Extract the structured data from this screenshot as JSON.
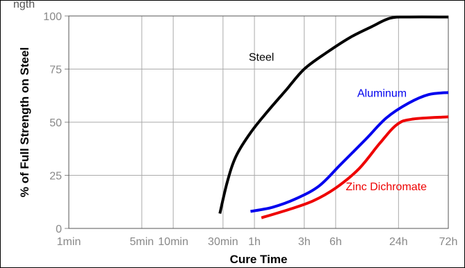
{
  "chart_data": {
    "type": "line",
    "caption_fragment": "ngth",
    "xlabel": "Cure Time",
    "ylabel": "% of Full Strength on Steel",
    "xscale": "log",
    "x_ticks": [
      {
        "label": "1min",
        "minutes": 1
      },
      {
        "label": "5min",
        "minutes": 5
      },
      {
        "label": "10min",
        "minutes": 10
      },
      {
        "label": "30min",
        "minutes": 30
      },
      {
        "label": "1h",
        "minutes": 60
      },
      {
        "label": "3h",
        "minutes": 180
      },
      {
        "label": "6h",
        "minutes": 360
      },
      {
        "label": "24h",
        "minutes": 1440
      },
      {
        "label": "72h",
        "minutes": 4320
      }
    ],
    "y_ticks": [
      0,
      25,
      50,
      75,
      100
    ],
    "ylim": [
      0,
      100
    ],
    "xlim_minutes": [
      1,
      4320
    ],
    "grid": true,
    "series": [
      {
        "name": "Steel",
        "color": "#000000",
        "points": [
          {
            "minutes": 28,
            "value": 7
          },
          {
            "minutes": 33,
            "value": 22
          },
          {
            "minutes": 40,
            "value": 34
          },
          {
            "minutes": 55,
            "value": 45
          },
          {
            "minutes": 80,
            "value": 55
          },
          {
            "minutes": 120,
            "value": 65
          },
          {
            "minutes": 180,
            "value": 75
          },
          {
            "minutes": 300,
            "value": 83
          },
          {
            "minutes": 500,
            "value": 90
          },
          {
            "minutes": 800,
            "value": 95
          },
          {
            "minutes": 1200,
            "value": 99
          },
          {
            "minutes": 1800,
            "value": 99.5
          },
          {
            "minutes": 4320,
            "value": 99.5
          }
        ]
      },
      {
        "name": "Aluminum",
        "color": "#0000ee",
        "points": [
          {
            "minutes": 55,
            "value": 8
          },
          {
            "minutes": 90,
            "value": 10
          },
          {
            "minutes": 150,
            "value": 14
          },
          {
            "minutes": 250,
            "value": 20
          },
          {
            "minutes": 400,
            "value": 30
          },
          {
            "minutes": 700,
            "value": 42
          },
          {
            "minutes": 1100,
            "value": 52
          },
          {
            "minutes": 1800,
            "value": 59
          },
          {
            "minutes": 2800,
            "value": 63
          },
          {
            "minutes": 4320,
            "value": 64
          }
        ]
      },
      {
        "name": "Zinc Dichromate",
        "color": "#ee0000",
        "points": [
          {
            "minutes": 70,
            "value": 5
          },
          {
            "minutes": 130,
            "value": 9
          },
          {
            "minutes": 220,
            "value": 13
          },
          {
            "minutes": 360,
            "value": 19
          },
          {
            "minutes": 600,
            "value": 28
          },
          {
            "minutes": 950,
            "value": 40
          },
          {
            "minutes": 1400,
            "value": 49
          },
          {
            "minutes": 2000,
            "value": 51.5
          },
          {
            "minutes": 4320,
            "value": 52.5
          }
        ]
      }
    ],
    "annotations": [
      {
        "text": "Steel",
        "color": "#000000",
        "minutes": 70,
        "value": 79
      },
      {
        "text": "Aluminum",
        "color": "#0000ee",
        "minutes": 1000,
        "value": 62
      },
      {
        "text": "Zinc Dichromate",
        "color": "#ee0000",
        "minutes": 1100,
        "value": 18
      }
    ]
  }
}
